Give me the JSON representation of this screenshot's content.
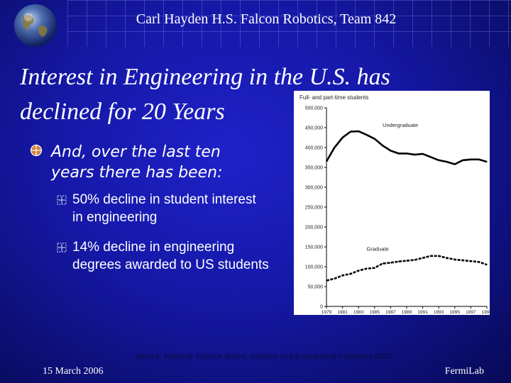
{
  "header": {
    "title": "Carl Hayden H.S. Falcon Robotics, Team 842"
  },
  "slide": {
    "title_line1": "Interest in Engineering in the U.S. has",
    "title_line2": "declined for 20 Years",
    "bullet": "And, over the last ten years there has been:",
    "sub_bullets": [
      "50% decline in student interest in engineering",
      " 14% decline in engineering degrees awarded to US students"
    ]
  },
  "footer": {
    "source": "Source: National Science Board, Science and Engineering Indicators 2002",
    "date": "15 March 2006",
    "right": "FermiLab"
  },
  "colors": {
    "background": "#1518a6",
    "text": "#ffffff",
    "chart_line": "#000000"
  },
  "chart_data": {
    "type": "line",
    "title": "Full- and part-time students",
    "x": [
      1979,
      1980,
      1981,
      1982,
      1983,
      1984,
      1985,
      1986,
      1987,
      1988,
      1989,
      1990,
      1991,
      1992,
      1993,
      1994,
      1995,
      1996,
      1997,
      1998,
      1999
    ],
    "x_tick_labels": [
      "1979",
      "1981",
      "1983",
      "1985",
      "1987",
      "1989",
      "1991",
      "1993",
      "1995",
      "1997",
      "1999"
    ],
    "y_tick_labels": [
      "0",
      "50,000",
      "100,000",
      "150,000",
      "200,000",
      "250,000",
      "300,000",
      "350,000",
      "400,000",
      "450,000",
      "500,000"
    ],
    "ylim": [
      0,
      500000
    ],
    "series": [
      {
        "name": "Undergraduate",
        "style": "solid",
        "values": [
          365000,
          400000,
          425000,
          440000,
          441000,
          432000,
          422000,
          405000,
          392000,
          385000,
          385000,
          382000,
          384000,
          376000,
          368000,
          364000,
          358000,
          368000,
          370000,
          370000,
          364000
        ]
      },
      {
        "name": "Graduate",
        "style": "dashed",
        "values": [
          65000,
          70000,
          78000,
          82000,
          90000,
          95000,
          97000,
          108000,
          110000,
          113000,
          115000,
          117000,
          122000,
          127000,
          127000,
          122000,
          118000,
          116000,
          114000,
          112000,
          105000
        ]
      }
    ],
    "grid": false,
    "legend": "inline labels"
  }
}
